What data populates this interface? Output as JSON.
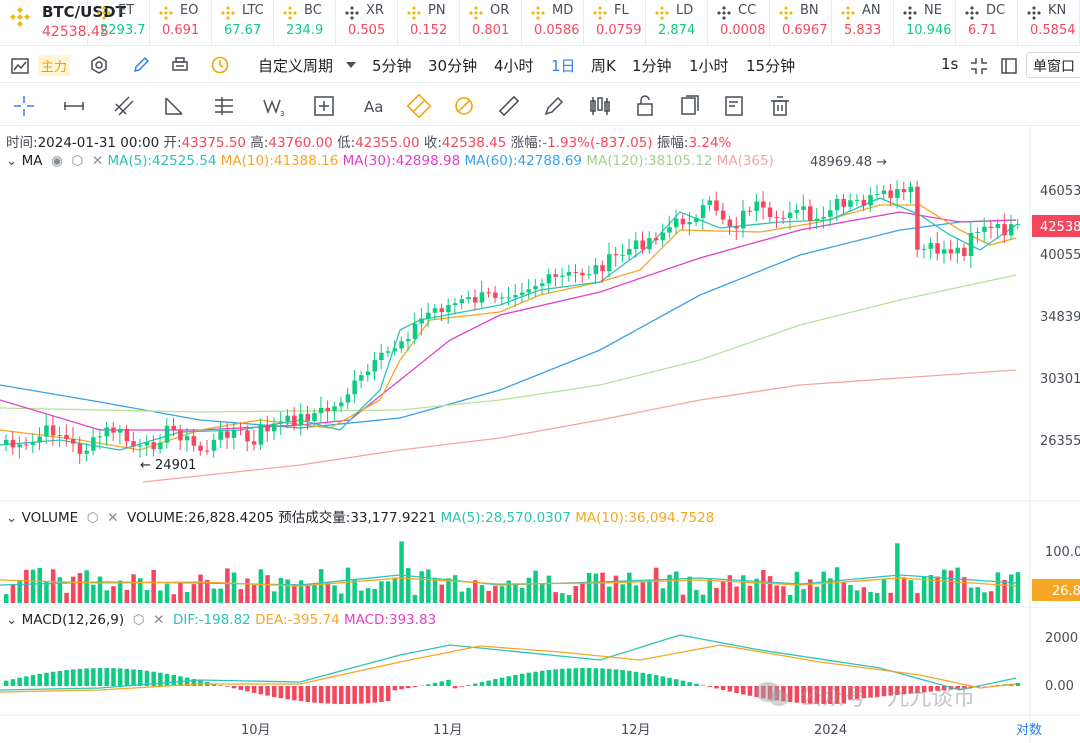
{
  "ticker": {
    "main": {
      "symbol": "BTC/USDT",
      "price": "42538.45"
    },
    "items": [
      {
        "sym": "ET",
        "price": "2293.7",
        "dir": "up"
      },
      {
        "sym": "EO",
        "price": "0.691",
        "dir": "dn"
      },
      {
        "sym": "LTC",
        "price": "67.67",
        "dir": "up"
      },
      {
        "sym": "BC",
        "price": "234.9",
        "dir": "up"
      },
      {
        "sym": "XR",
        "price": "0.505",
        "dir": "dn"
      },
      {
        "sym": "PN",
        "price": "0.152",
        "dir": "dn"
      },
      {
        "sym": "OR",
        "price": "0.801",
        "dir": "dn"
      },
      {
        "sym": "MD",
        "price": "0.0586",
        "dir": "dn"
      },
      {
        "sym": "FL",
        "price": "0.0759",
        "dir": "dn"
      },
      {
        "sym": "LD",
        "price": "2.874",
        "dir": "up"
      },
      {
        "sym": "CC",
        "price": "0.0008",
        "dir": "dn"
      },
      {
        "sym": "BN",
        "price": "0.6967",
        "dir": "dn"
      },
      {
        "sym": "AN",
        "price": "5.833",
        "dir": "dn"
      },
      {
        "sym": "NE",
        "price": "10.946",
        "dir": "up"
      },
      {
        "sym": "DC",
        "price": "6.71",
        "dir": "dn"
      },
      {
        "sym": "KN",
        "price": "0.5854",
        "dir": "dn"
      }
    ]
  },
  "toolbar": {
    "zhuli": "主力",
    "custom_period": "自定义周期",
    "periods": [
      "5分钟",
      "30分钟",
      "4小时",
      "1日",
      "周K",
      "1分钟",
      "1小时",
      "15分钟"
    ],
    "active_period": "1日",
    "interval": "1s",
    "window_mode": "单窗口"
  },
  "info": {
    "time_label": "时间:",
    "time": "2024-01-31 00:00",
    "open_label": "开:",
    "open": "43375.50",
    "high_label": "高:",
    "high": "43760.00",
    "low_label": "低:",
    "low": "42355.00",
    "close_label": "收:",
    "close": "42538.45",
    "change_label": "涨幅:",
    "change": "-1.93%(-837.05)",
    "amp_label": "振幅:",
    "amp": "3.24%"
  },
  "ma_line": {
    "name": "MA",
    "ma5": "MA(5):42525.54",
    "ma10": "MA(10):41388.16",
    "ma30": "MA(30):42898.98",
    "ma60": "MA(60):42788.69",
    "ma120": "MA(120):38105.12",
    "ma365": "MA(365)",
    "high_mark": "48969.48"
  },
  "volume_line": {
    "name": "VOLUME",
    "vol": "VOLUME:26,828.4205",
    "est": "预估成交量:33,177.9221",
    "ma5": "MA(5):28,570.0307",
    "ma10": "MA(10):36,094.7528"
  },
  "macd_line": {
    "name": "MACD(12,26,9)",
    "dif": "DIF:-198.82",
    "dea": "DEA:-395.74",
    "macd": "MACD:393.83"
  },
  "price_axis": [
    "46053",
    "40055",
    "34839",
    "30301",
    "26355"
  ],
  "current_price_tag": "42538",
  "volume_axis": {
    "top": "100.0",
    "tag": "26.8"
  },
  "macd_axis": [
    "2000",
    "0.00"
  ],
  "time_axis": [
    "10月",
    "11月",
    "12月",
    "2024"
  ],
  "low_mark": "24901",
  "log_label": "对数",
  "watermark": "公众号 · 九九谈币",
  "colors": {
    "up": "#0ecb81",
    "down": "#f6465d",
    "ma5": "#2bc4b7",
    "ma10": "#f5a623",
    "ma30": "#e040c8",
    "ma60": "#3aa0e8",
    "ma120": "#b6e29a",
    "ma365": "#f5a5a0"
  }
}
